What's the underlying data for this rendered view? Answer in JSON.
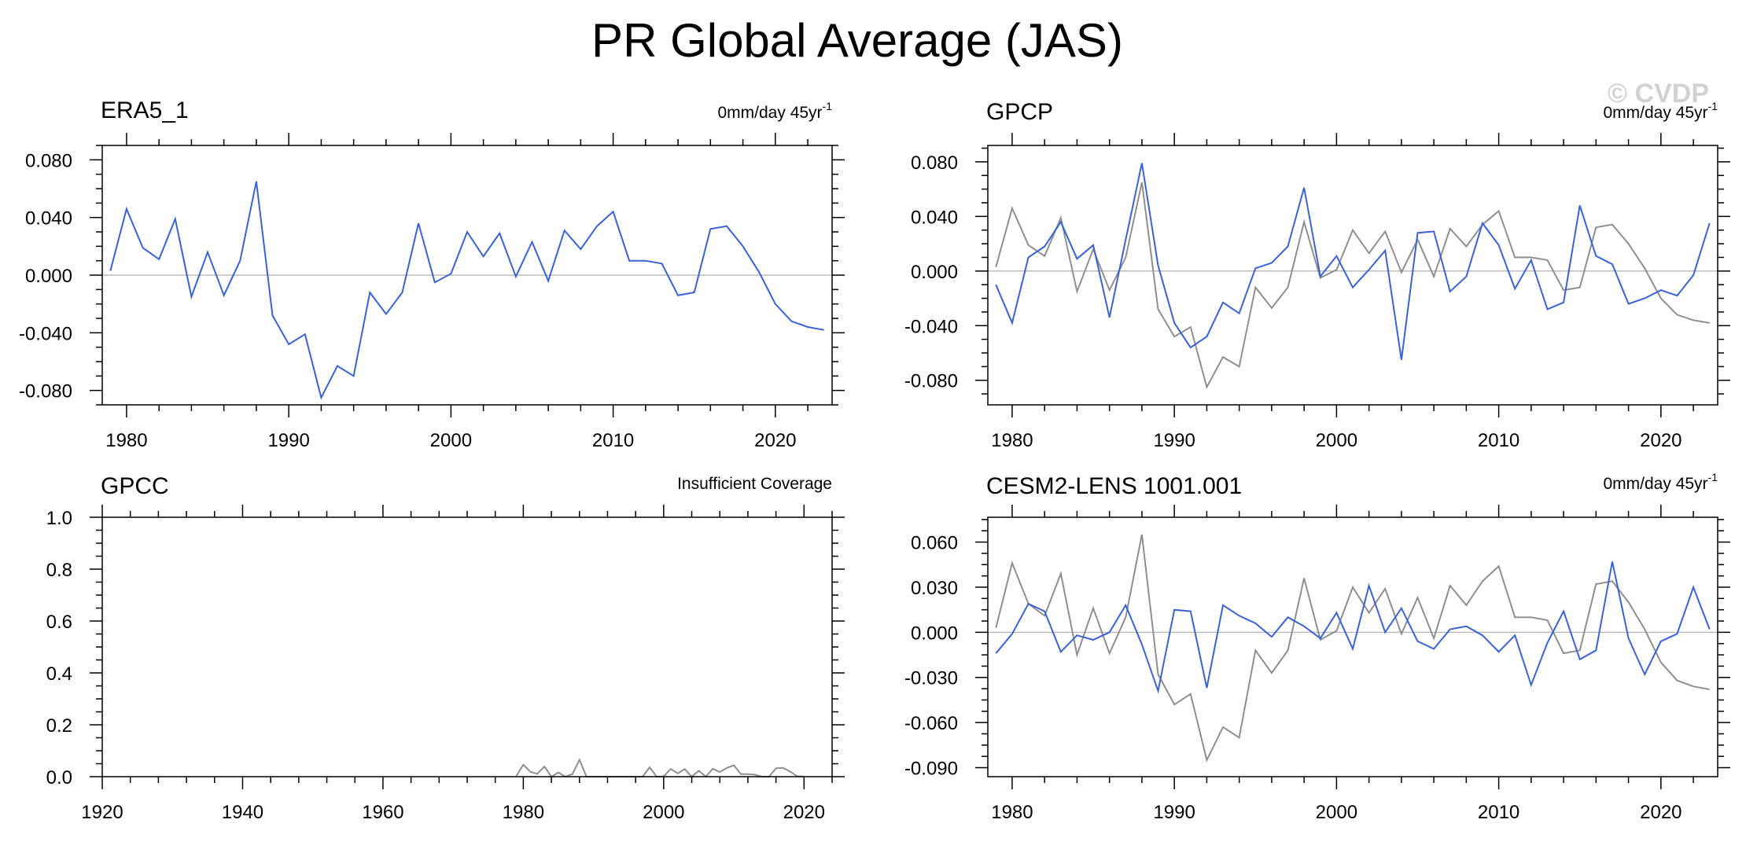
{
  "title": "PR Global Average (JAS)",
  "watermark": "© CVDP",
  "colors": {
    "series": "#3a62d4",
    "reference": "#8f8f8f",
    "zero_line": "#bdbdbd",
    "axis": "#000000"
  },
  "chart_data": [
    {
      "type": "line",
      "panel_title": "ERA5_1",
      "trend_label": {
        "prefix": "0mm/day 45yr",
        "superscript": "-1"
      },
      "xlim": [
        1978.5,
        2023.5
      ],
      "ylim": [
        -0.09,
        0.09
      ],
      "x_ticks": [
        1980,
        1990,
        2000,
        2010,
        2020
      ],
      "y_ticks": [
        -0.08,
        -0.04,
        0.0,
        0.04,
        0.08
      ],
      "y_tick_labels": [
        "-0.080",
        "-0.040",
        "0.000",
        "0.040",
        "0.080"
      ],
      "zero_line": true,
      "series": [
        {
          "name": "ERA5_1",
          "role": "main",
          "x_start": 1979,
          "values": [
            0.003,
            0.046,
            0.019,
            0.011,
            0.039,
            -0.015,
            0.016,
            -0.014,
            0.01,
            0.065,
            -0.028,
            -0.048,
            -0.041,
            -0.085,
            -0.063,
            -0.07,
            -0.012,
            -0.027,
            -0.012,
            0.036,
            -0.005,
            0.001,
            0.03,
            0.013,
            0.029,
            -0.001,
            0.023,
            -0.004,
            0.031,
            0.018,
            0.034,
            0.044,
            0.01,
            0.01,
            0.008,
            -0.014,
            -0.012,
            0.032,
            0.034,
            0.02,
            0.002,
            -0.02,
            -0.032,
            -0.036,
            -0.038
          ]
        }
      ]
    },
    {
      "type": "line",
      "panel_title": "GPCP",
      "trend_label": {
        "prefix": "0mm/day 45yr",
        "superscript": "-1"
      },
      "xlim": [
        1978.5,
        2023.5
      ],
      "ylim": [
        -0.098,
        0.092
      ],
      "x_ticks": [
        1980,
        1990,
        2000,
        2010,
        2020
      ],
      "y_ticks": [
        -0.08,
        -0.04,
        0.0,
        0.04,
        0.08
      ],
      "y_tick_labels": [
        "-0.080",
        "-0.040",
        "0.000",
        "0.040",
        "0.080"
      ],
      "zero_line": true,
      "series": [
        {
          "name": "ERA5_1",
          "role": "reference",
          "x_start": 1979,
          "values": [
            0.003,
            0.046,
            0.019,
            0.011,
            0.039,
            -0.015,
            0.016,
            -0.014,
            0.01,
            0.065,
            -0.028,
            -0.048,
            -0.041,
            -0.085,
            -0.063,
            -0.07,
            -0.012,
            -0.027,
            -0.012,
            0.036,
            -0.005,
            0.001,
            0.03,
            0.013,
            0.029,
            -0.001,
            0.023,
            -0.004,
            0.031,
            0.018,
            0.034,
            0.044,
            0.01,
            0.01,
            0.008,
            -0.014,
            -0.012,
            0.032,
            0.034,
            0.02,
            0.002,
            -0.02,
            -0.032,
            -0.036,
            -0.038
          ]
        },
        {
          "name": "GPCP",
          "role": "main",
          "x_start": 1979,
          "values": [
            -0.01,
            -0.038,
            0.01,
            0.018,
            0.036,
            0.009,
            0.019,
            -0.034,
            0.023,
            0.079,
            0.004,
            -0.038,
            -0.056,
            -0.048,
            -0.023,
            -0.031,
            0.002,
            0.006,
            0.018,
            0.061,
            -0.004,
            0.011,
            -0.012,
            0.001,
            0.015,
            -0.065,
            0.028,
            0.029,
            -0.015,
            -0.004,
            0.035,
            0.019,
            -0.013,
            0.008,
            -0.028,
            -0.023,
            0.048,
            0.011,
            0.005,
            -0.024,
            -0.02,
            -0.014,
            -0.018,
            -0.003,
            0.035
          ]
        }
      ]
    },
    {
      "type": "line",
      "panel_title": "GPCC",
      "trend_label": {
        "prefix": "Insufficient Coverage",
        "superscript": ""
      },
      "xlim": [
        1920,
        2024
      ],
      "ylim": [
        0.0,
        1.0
      ],
      "x_ticks": [
        1920,
        1940,
        1960,
        1980,
        2000,
        2020
      ],
      "y_ticks": [
        0.0,
        0.2,
        0.4,
        0.6,
        0.8,
        1.0
      ],
      "y_tick_labels": [
        "0.0",
        "0.2",
        "0.4",
        "0.6",
        "0.8",
        "1.0"
      ],
      "zero_line": false,
      "series": [
        {
          "name": "ERA5_1",
          "role": "reference",
          "x_start": 1979,
          "values": [
            0.003,
            0.046,
            0.019,
            0.011,
            0.039,
            0.0,
            0.016,
            0.0,
            0.01,
            0.065,
            0.0,
            0.0,
            0.0,
            0.0,
            0.0,
            0.0,
            0.0,
            0.0,
            0.0,
            0.036,
            0.0,
            0.001,
            0.03,
            0.013,
            0.029,
            0.0,
            0.023,
            0.0,
            0.031,
            0.018,
            0.034,
            0.044,
            0.01,
            0.01,
            0.008,
            0.0,
            0.0,
            0.032,
            0.034,
            0.02,
            0.002,
            0.0
          ]
        }
      ]
    },
    {
      "type": "line",
      "panel_title": "CESM2-LENS 1001.001",
      "trend_label": {
        "prefix": "0mm/day 45yr",
        "superscript": "-1"
      },
      "xlim": [
        1978.5,
        2023.5
      ],
      "ylim": [
        -0.096,
        0.0765
      ],
      "x_ticks": [
        1980,
        1990,
        2000,
        2010,
        2020
      ],
      "y_ticks": [
        -0.09,
        -0.06,
        -0.03,
        0.0,
        0.03,
        0.06
      ],
      "y_tick_labels": [
        "-0.090",
        "-0.060",
        "-0.030",
        "0.000",
        "0.030",
        "0.060"
      ],
      "zero_line": true,
      "series": [
        {
          "name": "ERA5_1",
          "role": "reference",
          "x_start": 1979,
          "values": [
            0.003,
            0.046,
            0.019,
            0.011,
            0.039,
            -0.015,
            0.016,
            -0.014,
            0.01,
            0.065,
            -0.028,
            -0.048,
            -0.041,
            -0.085,
            -0.063,
            -0.07,
            -0.012,
            -0.027,
            -0.012,
            0.036,
            -0.005,
            0.001,
            0.03,
            0.013,
            0.029,
            -0.001,
            0.023,
            -0.004,
            0.031,
            0.018,
            0.034,
            0.044,
            0.01,
            0.01,
            0.008,
            -0.014,
            -0.012,
            0.032,
            0.034,
            0.02,
            0.002,
            -0.02,
            -0.032,
            -0.036,
            -0.038
          ]
        },
        {
          "name": "CESM2-LENS 1001.001",
          "role": "main",
          "x_start": 1979,
          "values": [
            -0.014,
            -0.001,
            0.019,
            0.014,
            -0.013,
            -0.002,
            -0.005,
            0.0,
            0.018,
            -0.008,
            -0.039,
            0.015,
            0.014,
            -0.037,
            0.018,
            0.011,
            0.006,
            -0.003,
            0.01,
            0.004,
            -0.004,
            0.013,
            -0.011,
            0.031,
            0.0,
            0.016,
            -0.006,
            -0.011,
            0.002,
            0.004,
            -0.002,
            -0.013,
            -0.002,
            -0.035,
            -0.007,
            0.014,
            -0.018,
            -0.012,
            0.047,
            -0.004,
            -0.028,
            -0.006,
            -0.001,
            0.03,
            0.002
          ]
        }
      ]
    }
  ]
}
